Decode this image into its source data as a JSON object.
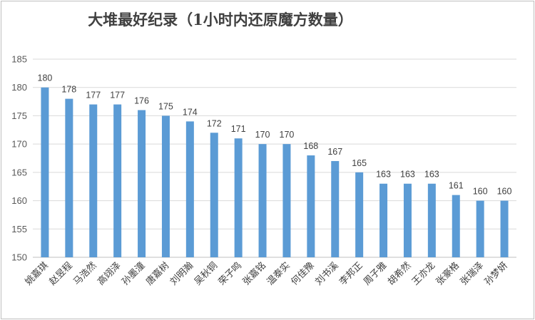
{
  "chart_data": {
    "type": "bar",
    "title": "大堆最好纪录（1小时内还原魔方数量）",
    "xlabel": "",
    "ylabel": "",
    "ylim": [
      150,
      185
    ],
    "yticks": [
      150,
      155,
      160,
      165,
      170,
      175,
      180,
      185
    ],
    "grid": true,
    "legend": "none",
    "bar_color": "#5b9bd5",
    "categories": [
      "姚嘉琪",
      "赵昱程",
      "马浩然",
      "高翊泽",
      "孙墨潼",
      "唐嘉树",
      "刘明瀚",
      "吴秋铜",
      "荣子鸣",
      "张嘉铭",
      "温泰实",
      "何佳豫",
      "刘书溪",
      "李邦正",
      "周子雅",
      "胡希然",
      "王亦龙",
      "张豪格",
      "张瑞泽",
      "孙梦妍"
    ],
    "values": [
      180,
      178,
      177,
      177,
      176,
      175,
      174,
      172,
      171,
      170,
      170,
      168,
      167,
      165,
      163,
      163,
      163,
      161,
      160,
      160
    ]
  }
}
